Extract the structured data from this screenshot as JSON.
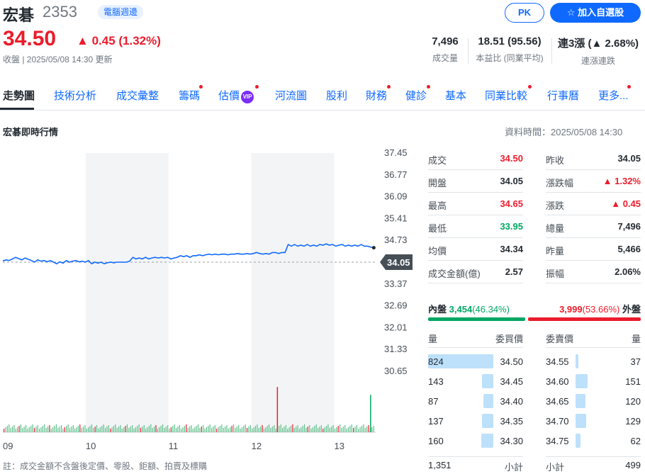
{
  "header": {
    "name": "宏碁",
    "code": "2353",
    "tag": "電腦週邊",
    "price": "34.50",
    "change": "0.45 (1.32%)",
    "close_info": "收盤 | 2025/05/08 14:30 更新",
    "pk_label": "PK",
    "add_label": "加入自選股"
  },
  "stats": [
    {
      "value": "7,496",
      "label": "成交量"
    },
    {
      "value": "18.51 (95.56)",
      "label": "本益比 (同業平均)"
    },
    {
      "value_prefix": "連3漲 (",
      "value_arrow": "▲",
      "value_suffix": "2.68%)",
      "label": "連漲連跌"
    }
  ],
  "tabs": [
    "走勢圖",
    "技術分析",
    "成交彙整",
    "籌碼",
    "估價",
    "河流圖",
    "股利",
    "財務",
    "健診",
    "基本",
    "同業比較",
    "行事曆",
    "更多..."
  ],
  "vip_label": "VIP",
  "section": {
    "title": "宏碁即時行情",
    "data_time": "資料時間：2025/05/08 14:30"
  },
  "quote_left": [
    {
      "label": "成交",
      "value": "34.50",
      "color": "red"
    },
    {
      "label": "開盤",
      "value": "34.05",
      "color": "black"
    },
    {
      "label": "最高",
      "value": "34.65",
      "color": "red"
    },
    {
      "label": "最低",
      "value": "33.95",
      "color": "green"
    },
    {
      "label": "均價",
      "value": "34.34",
      "color": "black"
    },
    {
      "label": "成交金額(億)",
      "value": "2.57",
      "color": "black"
    }
  ],
  "quote_right": [
    {
      "label": "昨收",
      "value": "34.05",
      "color": "black"
    },
    {
      "label": "漲跌幅",
      "value": "▲ 1.32%",
      "color": "red"
    },
    {
      "label": "漲跌",
      "value": "▲ 0.45",
      "color": "red"
    },
    {
      "label": "總量",
      "value": "7,496",
      "color": "black"
    },
    {
      "label": "昨量",
      "value": "5,466",
      "color": "black"
    },
    {
      "label": "振幅",
      "value": "2.06%",
      "color": "black"
    }
  ],
  "inner_outer": {
    "inner_label": "內盤",
    "inner_value": "3,454",
    "inner_pct": "(46.34%)",
    "outer_value": "3,999",
    "outer_pct": "(53.66%)",
    "outer_label": "外盤",
    "inner_ratio": 0.4634
  },
  "order_book": {
    "headers": {
      "bid_vol": "量",
      "bid_price": "委買價",
      "ask_price": "委賣價",
      "ask_vol": "量"
    },
    "bids": [
      {
        "vol": "824",
        "price": "34.50",
        "ratio": 1.0
      },
      {
        "vol": "143",
        "price": "34.45",
        "ratio": 0.17
      },
      {
        "vol": "87",
        "price": "34.40",
        "ratio": 0.11
      },
      {
        "vol": "137",
        "price": "34.35",
        "ratio": 0.17
      },
      {
        "vol": "160",
        "price": "34.30",
        "ratio": 0.19
      }
    ],
    "asks": [
      {
        "price": "34.55",
        "vol": "37",
        "ratio": 0.045
      },
      {
        "price": "34.60",
        "vol": "151",
        "ratio": 0.18
      },
      {
        "price": "34.65",
        "vol": "120",
        "ratio": 0.15
      },
      {
        "price": "34.70",
        "vol": "129",
        "ratio": 0.16
      },
      {
        "price": "34.75",
        "vol": "62",
        "ratio": 0.075
      }
    ],
    "bid_total": "1,351",
    "bid_total_label": "小計",
    "ask_total_label": "小計",
    "ask_total": "499"
  },
  "footnote": "註：成交金額不含盤後定價、零股、鉅額、拍賣及標購",
  "chart_data": {
    "type": "line",
    "y_ticks": [
      "37.45",
      "36.77",
      "36.09",
      "35.41",
      "34.73",
      "34.05",
      "33.37",
      "32.69",
      "32.01",
      "31.33",
      "30.65"
    ],
    "ylim": [
      30.65,
      37.45
    ],
    "x_ticks": [
      "09",
      "10",
      "11",
      "12",
      "13"
    ],
    "reference_price": 34.05,
    "reference_label": "34.05",
    "last_price": 34.5,
    "price_points": [
      34.09,
      34.12,
      34.1,
      34.15,
      34.2,
      34.16,
      34.12,
      34.18,
      34.14,
      34.1,
      34.05,
      34.12,
      34.08,
      34.1,
      34.06,
      34.1,
      34.05,
      34.0,
      34.06,
      34.02,
      34.1,
      34.05,
      34.08,
      34.1,
      34.06,
      34.08,
      34.05,
      34.1,
      34.0,
      34.05,
      34.02,
      34.05,
      34.0,
      34.03,
      34.05,
      34.03,
      34.05,
      34.05,
      34.05,
      34.05,
      34.08,
      34.2,
      34.15,
      34.18,
      34.15,
      34.2,
      34.15,
      34.18,
      34.2,
      34.18,
      34.2,
      34.18,
      34.2,
      34.15,
      34.18,
      34.2,
      34.25,
      34.22,
      34.25,
      34.2,
      34.25,
      34.25,
      34.28,
      34.25,
      34.28,
      34.3,
      34.28,
      34.3,
      34.28,
      34.3,
      34.3,
      34.28,
      34.3,
      34.3,
      34.32,
      34.3,
      34.3,
      34.32,
      34.3,
      34.32,
      34.35,
      34.32,
      34.3,
      34.32,
      34.3,
      34.35,
      34.35,
      34.32,
      34.35,
      34.35,
      34.6,
      34.55,
      34.6,
      34.55,
      34.58,
      34.55,
      34.6,
      34.55,
      34.58,
      34.55,
      34.6,
      34.58,
      34.62,
      34.58,
      34.6,
      34.55,
      34.58,
      34.6,
      34.55,
      34.58,
      34.55,
      34.58,
      34.55,
      34.6,
      34.55,
      34.55,
      34.52,
      34.5
    ],
    "volume_spikes": [
      {
        "pos": 0.735,
        "rel": 0.58,
        "dir": "up"
      },
      {
        "pos": 0.985,
        "rel": 0.48,
        "dir": "down"
      }
    ]
  }
}
